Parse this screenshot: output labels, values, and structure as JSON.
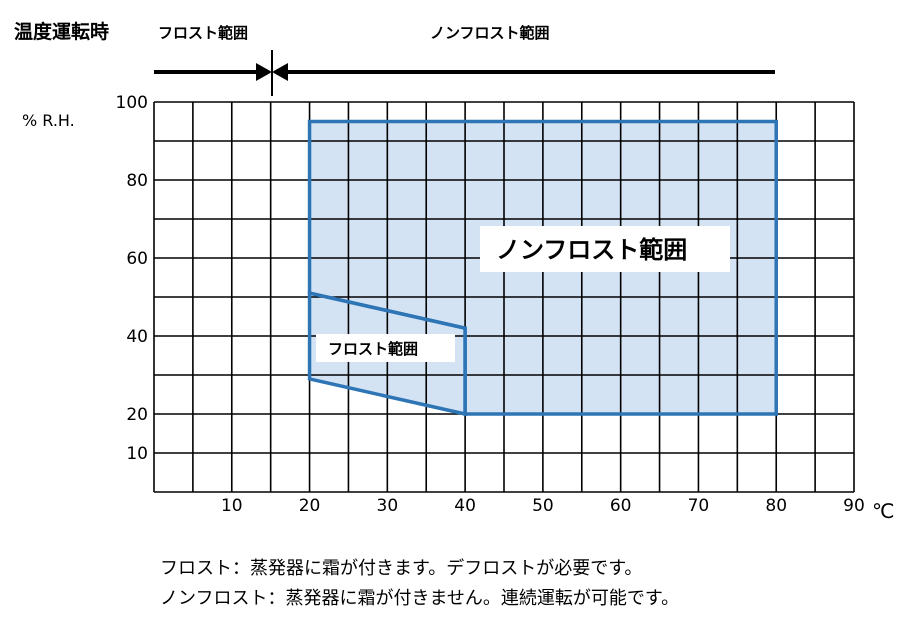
{
  "header": {
    "title": "温度運転時",
    "frost_label": "フロスト範囲",
    "nonfrost_label": "ノンフロスト範囲"
  },
  "chart_data": {
    "type": "area",
    "ylabel": "% R.H.",
    "xunit": "℃",
    "x_ticks": [
      10,
      20,
      30,
      40,
      50,
      60,
      70,
      80,
      90
    ],
    "y_ticks": [
      10,
      20,
      40,
      60,
      80,
      100
    ],
    "xlim": [
      0,
      90
    ],
    "ylim": [
      0,
      100
    ],
    "grid": true,
    "regions": [
      {
        "label": "ノンフロスト範囲",
        "polygon": [
          [
            20,
            95
          ],
          [
            80,
            95
          ],
          [
            80,
            20
          ],
          [
            40,
            20
          ],
          [
            40,
            42
          ],
          [
            20,
            51
          ]
        ]
      },
      {
        "label": "フロスト範囲",
        "polygon": [
          [
            20,
            51
          ],
          [
            40,
            42
          ],
          [
            40,
            20
          ],
          [
            20,
            29
          ]
        ]
      }
    ],
    "frost_boundary_x": 15,
    "colors": {
      "fill": "#d4e3f3",
      "outline": "#2e75b6"
    }
  },
  "footnotes": [
    "フロスト：蒸発器に霜が付きます。デフロストが必要です。",
    "ノンフロスト：蒸発器に霜が付きません。連続運転が可能です。"
  ]
}
